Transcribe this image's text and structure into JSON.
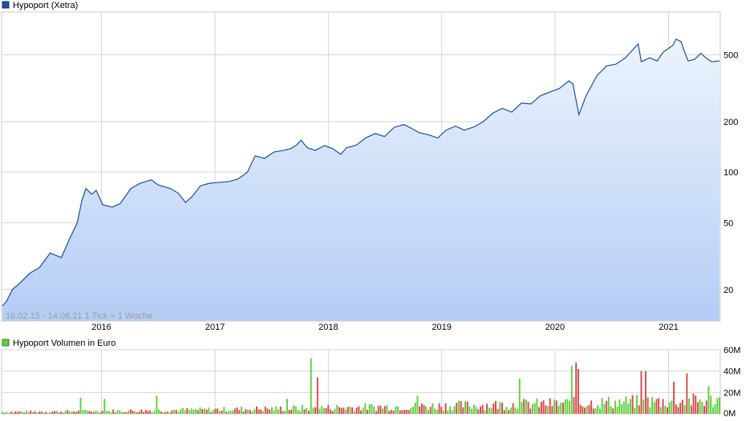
{
  "chart_data": [
    {
      "type": "area",
      "legend": "Hypoport (Xetra)",
      "scale": "log",
      "ylim": [
        13,
        900
      ],
      "y_ticks": [
        20,
        50,
        100,
        200,
        500
      ],
      "y_tick_labels": [
        "20",
        "50",
        "100",
        "200",
        "500"
      ],
      "x_range": [
        "2015-02-16",
        "2021-06-14"
      ],
      "x_tick_labels": [
        "2016",
        "2017",
        "2018",
        "2019",
        "2020",
        "2021"
      ],
      "x_tick_dates": [
        "2016-01-01",
        "2017-01-01",
        "2018-01-01",
        "2019-01-01",
        "2020-01-01",
        "2021-01-01"
      ],
      "note": "16.02.15 - 14.06.21   1 Tick = 1 Woche",
      "grid": true,
      "colors": {
        "line": "#1a4fa0",
        "fill_top": "#ecf3fd",
        "fill_bottom": "#b4cdf5",
        "grid": "#d6d6d6"
      },
      "series": [
        {
          "name": "Hypoport (Xetra)",
          "points": [
            [
              "2015-02-16",
              16
            ],
            [
              "2015-03-01",
              17
            ],
            [
              "2015-03-20",
              20
            ],
            [
              "2015-04-15",
              22
            ],
            [
              "2015-05-15",
              25
            ],
            [
              "2015-06-15",
              27
            ],
            [
              "2015-07-20",
              33
            ],
            [
              "2015-08-25",
              31
            ],
            [
              "2015-09-20",
              40
            ],
            [
              "2015-10-15",
              50
            ],
            [
              "2015-10-30",
              68
            ],
            [
              "2015-11-12",
              80
            ],
            [
              "2015-11-30",
              74
            ],
            [
              "2015-12-15",
              78
            ],
            [
              "2016-01-05",
              64
            ],
            [
              "2016-02-05",
              62
            ],
            [
              "2016-03-01",
              65
            ],
            [
              "2016-04-05",
              80
            ],
            [
              "2016-05-05",
              86
            ],
            [
              "2016-06-10",
              90
            ],
            [
              "2016-07-01",
              84
            ],
            [
              "2016-08-10",
              80
            ],
            [
              "2016-09-05",
              75
            ],
            [
              "2016-09-28",
              66
            ],
            [
              "2016-10-20",
              72
            ],
            [
              "2016-11-15",
              83
            ],
            [
              "2016-12-15",
              86
            ],
            [
              "2017-01-15",
              87
            ],
            [
              "2017-02-15",
              88
            ],
            [
              "2017-03-15",
              91
            ],
            [
              "2017-04-15",
              100
            ],
            [
              "2017-05-10",
              125
            ],
            [
              "2017-06-10",
              121
            ],
            [
              "2017-07-10",
              132
            ],
            [
              "2017-08-10",
              135
            ],
            [
              "2017-09-01",
              138
            ],
            [
              "2017-09-20",
              145
            ],
            [
              "2017-10-05",
              155
            ],
            [
              "2017-10-25",
              140
            ],
            [
              "2017-11-20",
              135
            ],
            [
              "2017-12-20",
              144
            ],
            [
              "2018-01-15",
              138
            ],
            [
              "2018-02-10",
              128
            ],
            [
              "2018-03-01",
              140
            ],
            [
              "2018-04-01",
              145
            ],
            [
              "2018-05-01",
              160
            ],
            [
              "2018-06-01",
              170
            ],
            [
              "2018-07-01",
              163
            ],
            [
              "2018-08-01",
              185
            ],
            [
              "2018-09-01",
              192
            ],
            [
              "2018-09-20",
              185
            ],
            [
              "2018-10-20",
              172
            ],
            [
              "2018-11-15",
              168
            ],
            [
              "2018-12-20",
              160
            ],
            [
              "2019-01-15",
              178
            ],
            [
              "2019-02-15",
              188
            ],
            [
              "2019-03-15",
              178
            ],
            [
              "2019-04-15",
              186
            ],
            [
              "2019-05-15",
              200
            ],
            [
              "2019-06-15",
              225
            ],
            [
              "2019-07-15",
              240
            ],
            [
              "2019-08-15",
              228
            ],
            [
              "2019-09-15",
              258
            ],
            [
              "2019-10-15",
              255
            ],
            [
              "2019-11-15",
              285
            ],
            [
              "2019-12-15",
              300
            ],
            [
              "2020-01-15",
              315
            ],
            [
              "2020-02-15",
              350
            ],
            [
              "2020-02-28",
              335
            ],
            [
              "2020-03-18",
              220
            ],
            [
              "2020-04-10",
              285
            ],
            [
              "2020-05-15",
              375
            ],
            [
              "2020-06-15",
              430
            ],
            [
              "2020-07-15",
              440
            ],
            [
              "2020-08-15",
              480
            ],
            [
              "2020-09-01",
              520
            ],
            [
              "2020-09-25",
              580
            ],
            [
              "2020-10-05",
              455
            ],
            [
              "2020-11-01",
              480
            ],
            [
              "2020-11-25",
              460
            ],
            [
              "2020-12-15",
              520
            ],
            [
              "2021-01-15",
              570
            ],
            [
              "2021-01-25",
              620
            ],
            [
              "2021-02-10",
              600
            ],
            [
              "2021-02-20",
              530
            ],
            [
              "2021-03-05",
              460
            ],
            [
              "2021-03-25",
              470
            ],
            [
              "2021-04-15",
              510
            ],
            [
              "2021-05-01",
              480
            ],
            [
              "2021-05-20",
              455
            ],
            [
              "2021-06-14",
              460
            ]
          ]
        }
      ]
    },
    {
      "type": "bar",
      "legend": "Hypoport Volumen in Euro",
      "ylim": [
        0,
        60
      ],
      "y_ticks": [
        0,
        20,
        40,
        60
      ],
      "y_tick_labels": [
        "0M",
        "20M",
        "40M",
        "60M"
      ],
      "x_range": [
        "2015-02-16",
        "2021-06-14"
      ],
      "bar_interval_days": 7,
      "grid": true,
      "colors": {
        "up": "#5fcf3d",
        "down": "#d64a4a"
      },
      "bar_count": 331,
      "bars_estimate": "weekly volumes in million euro, estimated from gridlines; green = up week, red = down week",
      "peaks": [
        [
          "2015-10-26",
          15
        ],
        [
          "2016-01-11",
          14
        ],
        [
          "2016-06-27",
          17
        ],
        [
          "2017-08-21",
          14
        ],
        [
          "2017-11-06",
          52
        ],
        [
          "2017-11-27",
          34
        ],
        [
          "2018-10-15",
          17
        ],
        [
          "2019-09-09",
          33
        ],
        [
          "2020-02-24",
          45
        ],
        [
          "2020-03-09",
          48
        ],
        [
          "2020-03-16",
          42
        ],
        [
          "2020-10-05",
          40
        ],
        [
          "2020-10-19",
          40
        ],
        [
          "2021-01-18",
          30
        ],
        [
          "2021-03-01",
          38
        ],
        [
          "2021-05-10",
          26
        ]
      ]
    }
  ]
}
